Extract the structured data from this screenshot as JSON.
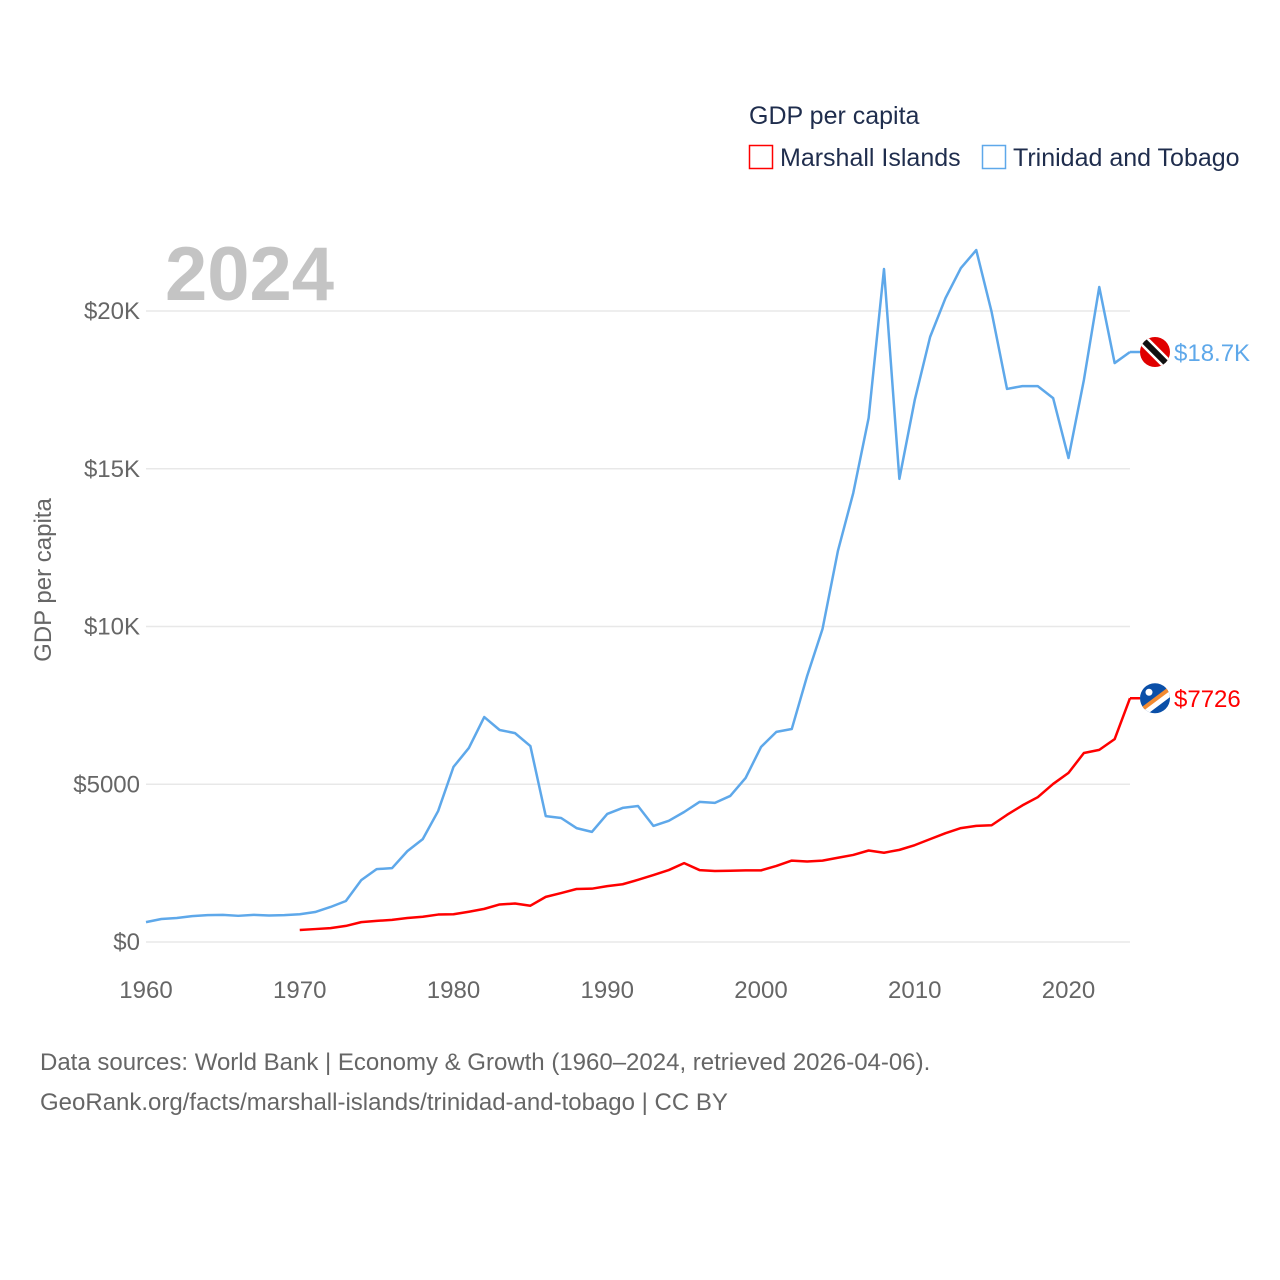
{
  "chart_data": {
    "type": "line",
    "year_label": "2024",
    "legend_title": "GDP per capita",
    "legend_placement": "top-right",
    "ylabel": "GDP per capita",
    "xlabel": "",
    "xlim": [
      1960,
      2024
    ],
    "ylim": [
      0,
      22500
    ],
    "x_ticks": [
      "1960",
      "1970",
      "1980",
      "1990",
      "2000",
      "2010",
      "2020"
    ],
    "x_tick_values": [
      1960,
      1970,
      1980,
      1990,
      2000,
      2010,
      2020
    ],
    "y_ticks": [
      "$0",
      "$5000",
      "$10K",
      "$15K",
      "$20K"
    ],
    "y_tick_values": [
      0,
      5000,
      10000,
      15000,
      20000
    ],
    "grid": true,
    "series": [
      {
        "name": "Marshall Islands",
        "color": "#ff0000",
        "end_label": "$7726",
        "flag": "marshall-islands-flag",
        "start_year": 1970,
        "values": [
          380,
          410,
          440,
          510,
          630,
          670,
          700,
          760,
          800,
          870,
          880,
          960,
          1050,
          1190,
          1220,
          1150,
          1430,
          1550,
          1680,
          1690,
          1770,
          1830,
          1970,
          2120,
          2280,
          2500,
          2280,
          2250,
          2260,
          2270,
          2270,
          2410,
          2580,
          2550,
          2580,
          2670,
          2760,
          2900,
          2830,
          2920,
          3070,
          3260,
          3450,
          3610,
          3680,
          3700,
          4030,
          4330,
          4590,
          5010,
          5360,
          5990,
          6090,
          6430,
          7726
        ]
      },
      {
        "name": "Trinidad and Tobago",
        "color": "#5ea8ea",
        "end_label": "$18.7K",
        "flag": "trinidad-and-tobago-flag",
        "start_year": 1960,
        "values": [
          630,
          730,
          760,
          820,
          850,
          860,
          830,
          860,
          840,
          850,
          880,
          950,
          1110,
          1300,
          1960,
          2310,
          2340,
          2880,
          3260,
          4150,
          5550,
          6150,
          7130,
          6720,
          6620,
          6210,
          3990,
          3930,
          3610,
          3490,
          4060,
          4250,
          4310,
          3680,
          3840,
          4120,
          4440,
          4410,
          4630,
          5200,
          6180,
          6660,
          6750,
          8430,
          9920,
          12390,
          14230,
          16610,
          21330,
          14680,
          17180,
          19180,
          20410,
          21360,
          21930,
          19970,
          17530,
          17620,
          17620,
          17240,
          15340,
          17810,
          20760,
          18350,
          18700
        ]
      }
    ]
  },
  "footer": {
    "line1": "Data sources: World Bank | Economy & Growth (1960–2024, retrieved 2026-04-06).",
    "line2": "GeoRank.org/facts/marshall-islands/trinidad-and-tobago | CC BY"
  }
}
